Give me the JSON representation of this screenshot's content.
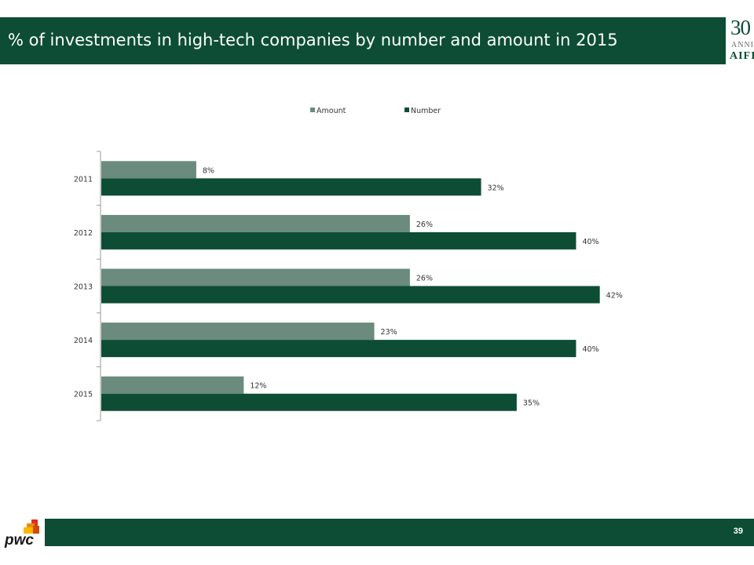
{
  "header": {
    "title": "% of investments in high-tech companies by number and amount in 2015"
  },
  "logo": {
    "number": "30",
    "sub": "ANNI",
    "name": "AIFI"
  },
  "footer": {
    "page_number": "39",
    "brand": "pwc"
  },
  "colors": {
    "brand_green": "#0d4d36",
    "amount_bar": "#6a8b7d",
    "number_bar": "#0d4d36"
  },
  "chart_data": {
    "type": "bar",
    "orientation": "horizontal",
    "categories": [
      "2011",
      "2012",
      "2013",
      "2014",
      "2015"
    ],
    "series": [
      {
        "name": "Amount",
        "values": [
          8,
          26,
          26,
          23,
          12
        ],
        "labels": [
          "8%",
          "26%",
          "26%",
          "23%",
          "12%"
        ]
      },
      {
        "name": "Number",
        "values": [
          32,
          40,
          42,
          40,
          35
        ],
        "labels": [
          "32%",
          "40%",
          "42%",
          "40%",
          "35%"
        ]
      }
    ],
    "xlim": [
      0,
      45
    ],
    "legend": "top",
    "grid": false,
    "title": "",
    "xlabel": "",
    "ylabel": ""
  }
}
